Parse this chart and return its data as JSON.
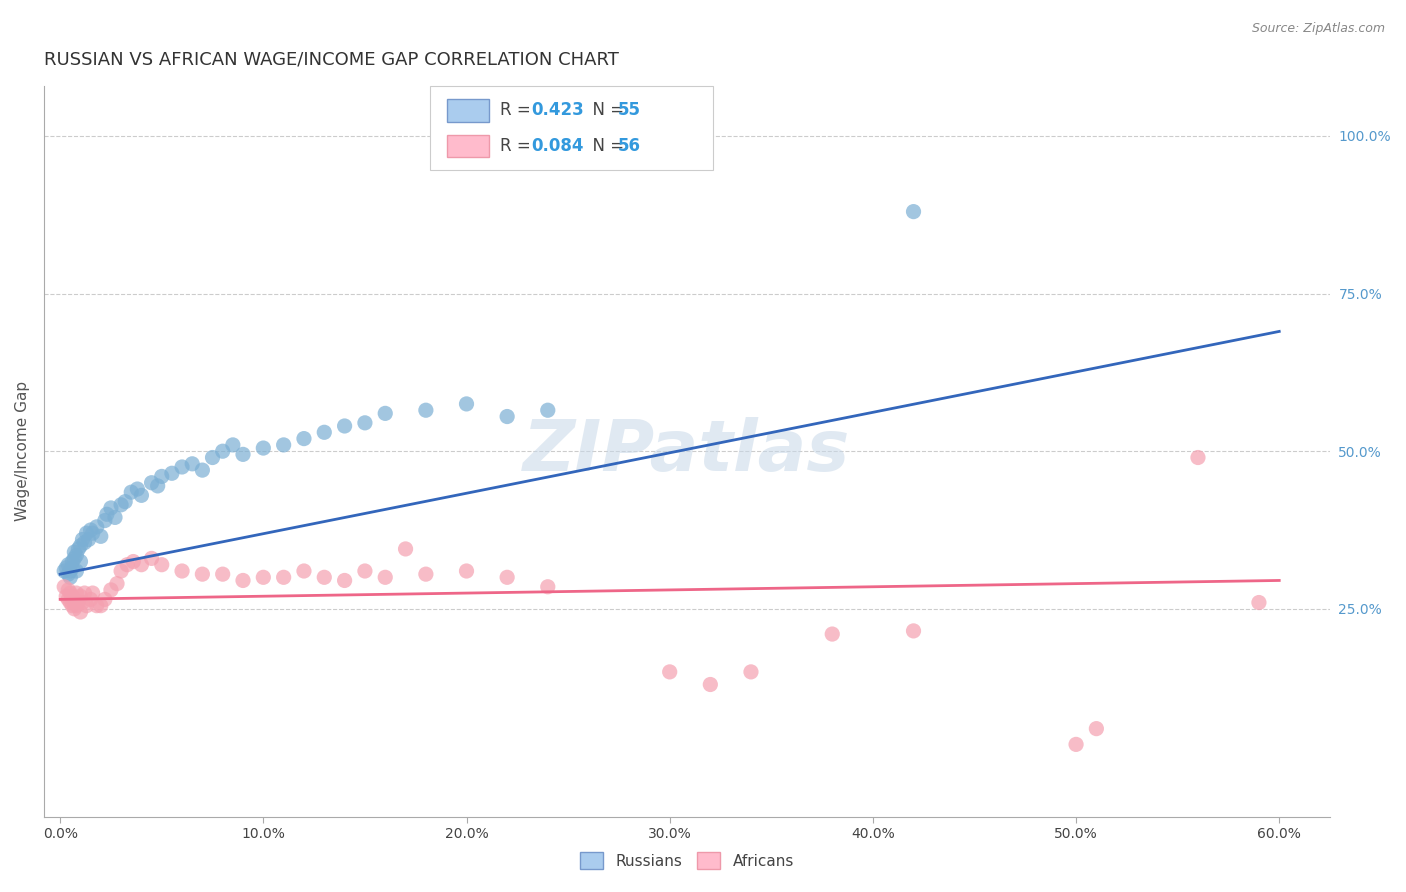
{
  "title": "RUSSIAN VS AFRICAN WAGE/INCOME GAP CORRELATION CHART",
  "source": "Source: ZipAtlas.com",
  "ylabel": "Wage/Income Gap",
  "xlabel_ticks": [
    "0.0%",
    "10.0%",
    "20.0%",
    "30.0%",
    "40.0%",
    "50.0%",
    "60.0%"
  ],
  "xlabel_vals": [
    0.0,
    0.1,
    0.2,
    0.3,
    0.4,
    0.5,
    0.6
  ],
  "ylabel_ticks": [
    "100.0%",
    "75.0%",
    "50.0%",
    "25.0%"
  ],
  "ylabel_vals": [
    1.0,
    0.75,
    0.5,
    0.25
  ],
  "xlim": [
    -0.008,
    0.625
  ],
  "ylim": [
    -0.08,
    1.08
  ],
  "russian_R": "0.423",
  "russian_N": "55",
  "african_R": "0.084",
  "african_N": "56",
  "russian_color": "#7BAFD4",
  "african_color": "#F4A0B0",
  "russian_scatter": [
    [
      0.002,
      0.31
    ],
    [
      0.003,
      0.315
    ],
    [
      0.004,
      0.305
    ],
    [
      0.004,
      0.32
    ],
    [
      0.005,
      0.3
    ],
    [
      0.005,
      0.31
    ],
    [
      0.006,
      0.325
    ],
    [
      0.006,
      0.315
    ],
    [
      0.007,
      0.33
    ],
    [
      0.007,
      0.34
    ],
    [
      0.008,
      0.335
    ],
    [
      0.008,
      0.31
    ],
    [
      0.009,
      0.345
    ],
    [
      0.01,
      0.35
    ],
    [
      0.01,
      0.325
    ],
    [
      0.011,
      0.36
    ],
    [
      0.012,
      0.355
    ],
    [
      0.013,
      0.37
    ],
    [
      0.014,
      0.36
    ],
    [
      0.015,
      0.375
    ],
    [
      0.016,
      0.37
    ],
    [
      0.018,
      0.38
    ],
    [
      0.02,
      0.365
    ],
    [
      0.022,
      0.39
    ],
    [
      0.023,
      0.4
    ],
    [
      0.025,
      0.41
    ],
    [
      0.027,
      0.395
    ],
    [
      0.03,
      0.415
    ],
    [
      0.032,
      0.42
    ],
    [
      0.035,
      0.435
    ],
    [
      0.038,
      0.44
    ],
    [
      0.04,
      0.43
    ],
    [
      0.045,
      0.45
    ],
    [
      0.048,
      0.445
    ],
    [
      0.05,
      0.46
    ],
    [
      0.055,
      0.465
    ],
    [
      0.06,
      0.475
    ],
    [
      0.065,
      0.48
    ],
    [
      0.07,
      0.47
    ],
    [
      0.075,
      0.49
    ],
    [
      0.08,
      0.5
    ],
    [
      0.085,
      0.51
    ],
    [
      0.09,
      0.495
    ],
    [
      0.1,
      0.505
    ],
    [
      0.11,
      0.51
    ],
    [
      0.12,
      0.52
    ],
    [
      0.13,
      0.53
    ],
    [
      0.14,
      0.54
    ],
    [
      0.15,
      0.545
    ],
    [
      0.16,
      0.56
    ],
    [
      0.18,
      0.565
    ],
    [
      0.2,
      0.575
    ],
    [
      0.22,
      0.555
    ],
    [
      0.24,
      0.565
    ],
    [
      0.42,
      0.88
    ]
  ],
  "african_scatter": [
    [
      0.002,
      0.285
    ],
    [
      0.003,
      0.27
    ],
    [
      0.004,
      0.28
    ],
    [
      0.004,
      0.265
    ],
    [
      0.005,
      0.275
    ],
    [
      0.005,
      0.26
    ],
    [
      0.006,
      0.27
    ],
    [
      0.006,
      0.255
    ],
    [
      0.007,
      0.265
    ],
    [
      0.007,
      0.25
    ],
    [
      0.008,
      0.275
    ],
    [
      0.008,
      0.255
    ],
    [
      0.009,
      0.26
    ],
    [
      0.01,
      0.27
    ],
    [
      0.01,
      0.245
    ],
    [
      0.011,
      0.26
    ],
    [
      0.012,
      0.275
    ],
    [
      0.013,
      0.255
    ],
    [
      0.015,
      0.265
    ],
    [
      0.016,
      0.275
    ],
    [
      0.018,
      0.255
    ],
    [
      0.02,
      0.255
    ],
    [
      0.022,
      0.265
    ],
    [
      0.025,
      0.28
    ],
    [
      0.028,
      0.29
    ],
    [
      0.03,
      0.31
    ],
    [
      0.033,
      0.32
    ],
    [
      0.036,
      0.325
    ],
    [
      0.04,
      0.32
    ],
    [
      0.045,
      0.33
    ],
    [
      0.05,
      0.32
    ],
    [
      0.06,
      0.31
    ],
    [
      0.07,
      0.305
    ],
    [
      0.08,
      0.305
    ],
    [
      0.09,
      0.295
    ],
    [
      0.1,
      0.3
    ],
    [
      0.11,
      0.3
    ],
    [
      0.12,
      0.31
    ],
    [
      0.13,
      0.3
    ],
    [
      0.14,
      0.295
    ],
    [
      0.15,
      0.31
    ],
    [
      0.16,
      0.3
    ],
    [
      0.17,
      0.345
    ],
    [
      0.18,
      0.305
    ],
    [
      0.2,
      0.31
    ],
    [
      0.22,
      0.3
    ],
    [
      0.24,
      0.285
    ],
    [
      0.3,
      0.15
    ],
    [
      0.32,
      0.13
    ],
    [
      0.34,
      0.15
    ],
    [
      0.38,
      0.21
    ],
    [
      0.42,
      0.215
    ],
    [
      0.5,
      0.035
    ],
    [
      0.51,
      0.06
    ],
    [
      0.56,
      0.49
    ],
    [
      0.59,
      0.26
    ]
  ],
  "russian_trend_x": [
    0.0,
    0.6
  ],
  "russian_trend_y": [
    0.305,
    0.69
  ],
  "african_trend_x": [
    0.0,
    0.6
  ],
  "african_trend_y": [
    0.265,
    0.295
  ],
  "watermark": "ZIPatlas",
  "background_color": "#FFFFFF",
  "grid_color": "#CCCCCC",
  "title_fontsize": 13,
  "label_fontsize": 11,
  "tick_fontsize": 10,
  "source_fontsize": 9
}
